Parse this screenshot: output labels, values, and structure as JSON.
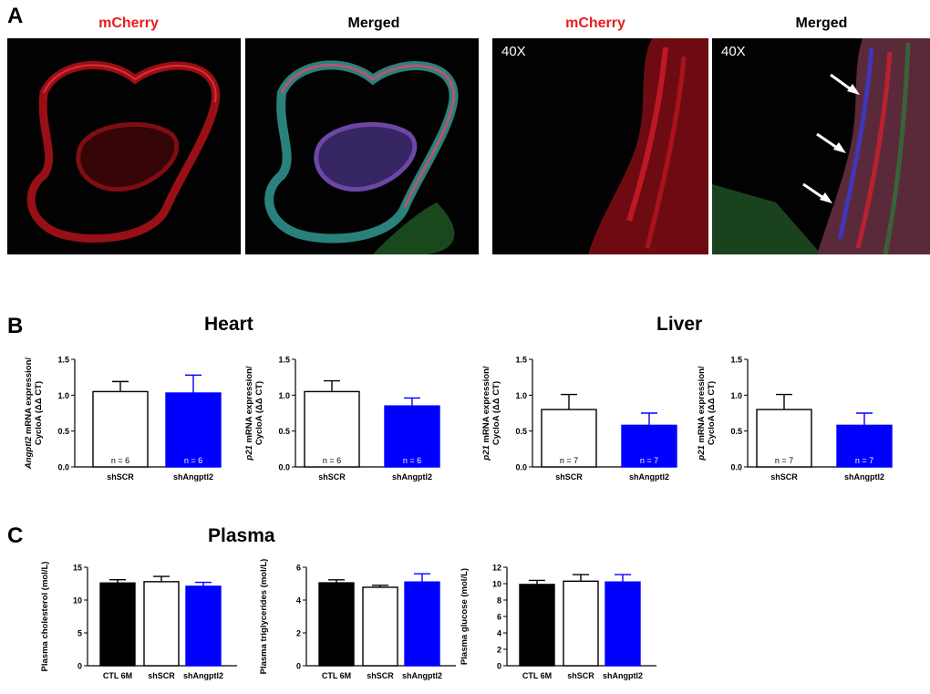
{
  "figure": {
    "panel_labels": [
      "A",
      "B",
      "C"
    ],
    "panel_a": {
      "images": [
        {
          "title": "mCherry",
          "title_color": "#e81c1c",
          "channel": "red-only"
        },
        {
          "title": "Merged",
          "title_color": "#000000",
          "channel": "merged"
        },
        {
          "title": "mCherry",
          "title_color": "#e81c1c",
          "magnification": "40X",
          "channel": "red-only"
        },
        {
          "title": "Merged",
          "title_color": "#000000",
          "magnification": "40X",
          "channel": "merged",
          "arrows": 3
        }
      ]
    },
    "panel_b": {
      "heart_title": "Heart",
      "liver_title": "Liver"
    },
    "panel_c": {
      "title": "Plasma"
    }
  },
  "chart_data": [
    {
      "type": "bar",
      "panel": "B",
      "group": "Heart",
      "categories": [
        "shSCR",
        "shAngptl2"
      ],
      "values": [
        1.05,
        1.03
      ],
      "errors": [
        0.14,
        0.25
      ],
      "n_labels": [
        "n = 6",
        "n = 6"
      ],
      "ylabel_italic": "Angptl2",
      "ylabel_line1": " mRNA expression/",
      "ylabel_line2": "CycloA (ΔΔ CT)",
      "ylim": [
        0,
        1.5
      ],
      "yticks": [
        "0.0",
        "0.5",
        "1.0",
        "1.5"
      ],
      "colors": [
        "#ffffff",
        "#0000ff"
      ]
    },
    {
      "type": "bar",
      "panel": "B",
      "group": "Heart",
      "categories": [
        "shSCR",
        "shAngptl2"
      ],
      "values": [
        1.05,
        0.85
      ],
      "errors": [
        0.15,
        0.11
      ],
      "n_labels": [
        "n = 6",
        "n = 6"
      ],
      "ylabel_italic": "p21",
      "ylabel_line1": " mRNA expression/",
      "ylabel_line2": "CycloA (ΔΔ CT)",
      "ylim": [
        0,
        1.5
      ],
      "yticks": [
        "0.0",
        "0.5",
        "1.0",
        "1.5"
      ],
      "colors": [
        "#ffffff",
        "#0000ff"
      ]
    },
    {
      "type": "bar",
      "panel": "B",
      "group": "Liver",
      "categories": [
        "shSCR",
        "shAngptl2"
      ],
      "values": [
        0.8,
        0.58
      ],
      "errors": [
        0.21,
        0.17
      ],
      "n_labels": [
        "n = 7",
        "n = 7"
      ],
      "ylabel_italic": "p21",
      "ylabel_line1": " mRNA expression/",
      "ylabel_line2": "CycloA (ΔΔ CT)",
      "ylim": [
        0,
        1.5
      ],
      "yticks": [
        "0.0",
        "0.5",
        "1.0",
        "1.5"
      ],
      "colors": [
        "#ffffff",
        "#0000ff"
      ]
    },
    {
      "type": "bar",
      "panel": "B",
      "group": "Liver",
      "categories": [
        "shSCR",
        "shAngptl2"
      ],
      "values": [
        0.8,
        0.58
      ],
      "errors": [
        0.21,
        0.17
      ],
      "n_labels": [
        "n = 7",
        "n = 7"
      ],
      "ylabel_italic": "p21",
      "ylabel_line1": " mRNA expression/",
      "ylabel_line2": "CycloA (ΔΔ CT)",
      "ylim": [
        0,
        1.5
      ],
      "yticks": [
        "0.0",
        "0.5",
        "1.0",
        "1.5"
      ],
      "colors": [
        "#ffffff",
        "#0000ff"
      ]
    },
    {
      "type": "bar",
      "panel": "C",
      "group": "Plasma",
      "categories": [
        "CTL 6M",
        "shSCR",
        "shAngptl2"
      ],
      "values": [
        12.6,
        12.8,
        12.1
      ],
      "errors": [
        0.5,
        0.8,
        0.6
      ],
      "ylabel_line1": "Plasma cholesterol (mol/L)",
      "ylim": [
        0,
        15
      ],
      "yticks": [
        "0",
        "5",
        "10",
        "15"
      ],
      "colors": [
        "#000000",
        "#ffffff",
        "#0000ff"
      ]
    },
    {
      "type": "bar",
      "panel": "C",
      "group": "Plasma",
      "categories": [
        "CTL 6M",
        "shSCR",
        "shAngptl2"
      ],
      "values": [
        5.05,
        4.78,
        5.1
      ],
      "errors": [
        0.18,
        0.12,
        0.5
      ],
      "ylabel_line1": "Plasma triglycerides (mol/L)",
      "ylim": [
        0,
        6
      ],
      "yticks": [
        "0",
        "2",
        "4",
        "6"
      ],
      "colors": [
        "#000000",
        "#ffffff",
        "#0000ff"
      ]
    },
    {
      "type": "bar",
      "panel": "C",
      "group": "Plasma",
      "categories": [
        "CTL 6M",
        "shSCR",
        "shAngptl2"
      ],
      "values": [
        9.9,
        10.3,
        10.2
      ],
      "errors": [
        0.5,
        0.8,
        0.9
      ],
      "ylabel_line1": "Plasma glucose (mol/L)",
      "ylim": [
        0,
        12
      ],
      "yticks": [
        "0",
        "2",
        "4",
        "6",
        "8",
        "10",
        "12"
      ],
      "colors": [
        "#000000",
        "#ffffff",
        "#0000ff"
      ]
    }
  ]
}
